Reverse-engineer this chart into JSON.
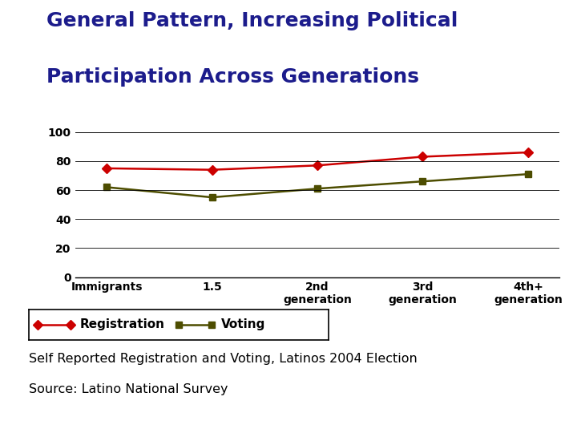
{
  "title_line1": "General Pattern, Increasing Political",
  "title_line2": "Participation Across Generations",
  "title_color": "#1c1c8c",
  "title_fontsize": 18,
  "title_fontstyle": "bold",
  "categories": [
    "Immigrants",
    "1.5",
    "2nd\ngeneration",
    "3rd\ngeneration",
    "4th+\ngeneration"
  ],
  "registration": [
    75,
    74,
    77,
    83,
    86
  ],
  "voting": [
    62,
    55,
    61,
    66,
    71
  ],
  "registration_color": "#cc0000",
  "voting_color": "#4d4d00",
  "ylim": [
    0,
    100
  ],
  "yticks": [
    0,
    20,
    40,
    60,
    80,
    100
  ],
  "legend_label_registration": "Registration",
  "legend_label_voting": "Voting",
  "subtitle_line1": "Self Reported Registration and Voting, Latinos 2004 Election",
  "subtitle_line2": "Source: Latino National Survey",
  "subtitle_fontsize": 11.5,
  "background_color": "#ffffff",
  "yellow_color": "#f5c400",
  "blue_color": "#1a1aaa",
  "red_color": "#dd2222"
}
